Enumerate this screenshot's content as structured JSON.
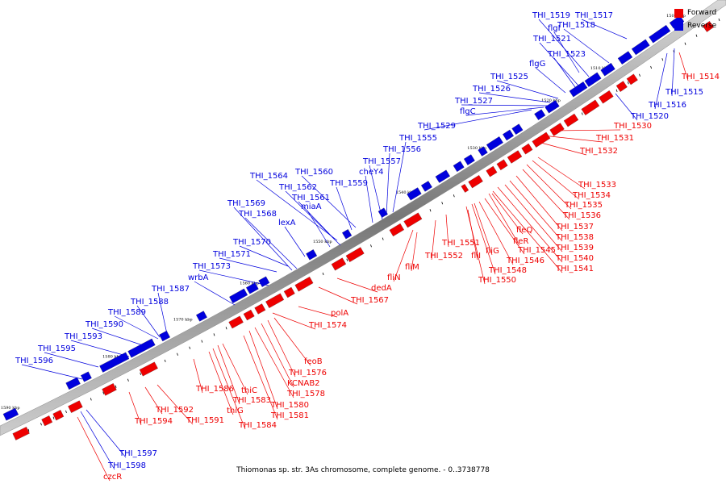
{
  "title": "Thiomonas sp. str. 3As chromosome, complete genome. - 0..3738778",
  "legend": {
    "forward_label": "Forward",
    "reverse_label": "Reverse",
    "forward_color": "#ee0000",
    "reverse_color": "#0000dd"
  },
  "tick_labels": [
    "1500 kbp",
    "1510 kbp",
    "1520 kbp",
    "1530 kbp",
    "1540 kbp",
    "1550 kbp",
    "1560 kbp",
    "1570 kbp",
    "1580 kbp",
    "1590 kbp"
  ],
  "reverse_labels": [
    "THI_1519",
    "THI_1517",
    "flgI",
    "THI_1518",
    "THI_1521",
    "THI_1523",
    "flgG",
    "THI_1525",
    "THI_1526",
    "THI_1527",
    "flgC",
    "THI_1529",
    "THI_1555",
    "THI_1556",
    "THI_1557",
    "cheY4",
    "THI_1560",
    "THI_1559",
    "THI_1564",
    "THI_1562",
    "THI_1561",
    "miaA",
    "THI_1569",
    "THI_1568",
    "lexA",
    "THI_1570",
    "THI_1571",
    "THI_1573",
    "wrbA",
    "THI_1587",
    "THI_1588",
    "THI_1589",
    "THI_1590",
    "THI_1593",
    "THI_1595",
    "THI_1596",
    "THI_1597",
    "THI_1598",
    "THI_1515",
    "THI_1516",
    "THI_1520"
  ],
  "forward_labels": [
    "THI_1514",
    "THI_1530",
    "THI_1531",
    "THI_1532",
    "THI_1533",
    "THI_1534",
    "THI_1535",
    "THI_1536",
    "THI_1537",
    "THI_1538",
    "THI_1539",
    "THI_1540",
    "THI_1541",
    "fleQ",
    "fleR",
    "THI_1545",
    "THI_1546",
    "THI_1548",
    "THI_1550",
    "fliG",
    "fliI",
    "THI_1551",
    "THI_1552",
    "fliM",
    "fliN",
    "dedA",
    "THI_1567",
    "polA",
    "THI_1574",
    "feoB",
    "THI_1576",
    "KCNAB2",
    "THI_1578",
    "THI_1580",
    "THI_1581",
    "thiC",
    "THI_1583",
    "THI_1584",
    "thiG",
    "THI_1586",
    "THI_1591",
    "THI_1592",
    "THI_1594",
    "czcR"
  ]
}
